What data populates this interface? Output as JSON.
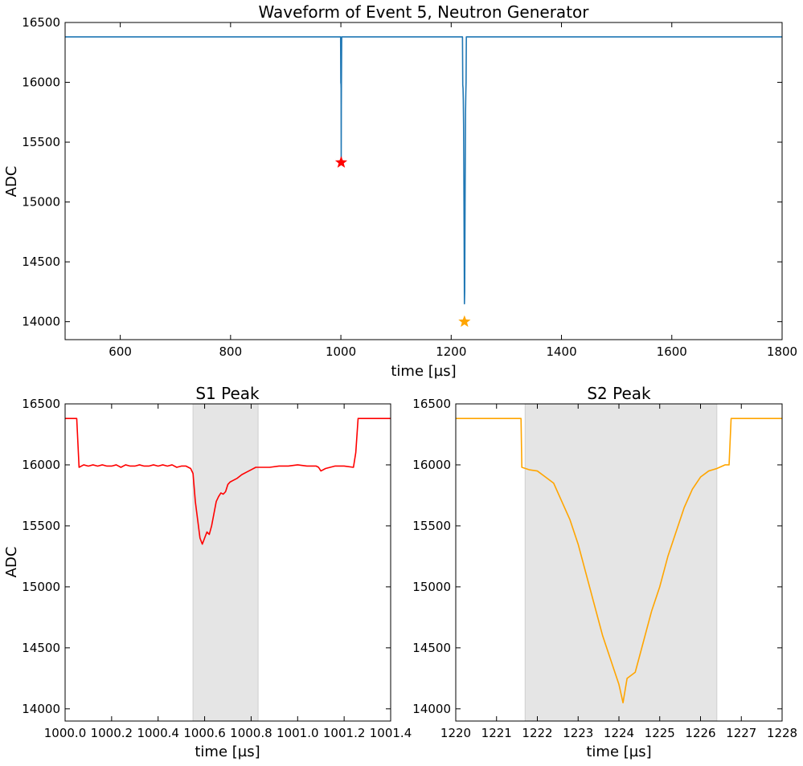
{
  "chart_data": [
    {
      "id": "main",
      "type": "line",
      "title": "Waveform of Event 5, Neutron Generator",
      "xlabel": "time [µs]",
      "ylabel": "ADC",
      "xlim": [
        500,
        1800
      ],
      "ylim": [
        13850,
        16500
      ],
      "xticks": [
        600,
        800,
        1000,
        1200,
        1400,
        1600,
        1800
      ],
      "yticks": [
        14000,
        14500,
        15000,
        15500,
        16000,
        16500
      ],
      "grid": false,
      "color": "#1f77b4",
      "series": [
        {
          "x": [
            500,
            999.5,
            999.9,
            1000.0,
            1000.1,
            1000.2,
            1000.4,
            1000.6,
            1000.8,
            1001.0,
            1001.5,
            1220.5,
            1221.0,
            1221.5,
            1222.0,
            1222.5,
            1223.0,
            1223.5,
            1224.0,
            1224.5,
            1225.0,
            1225.5,
            1226.0,
            1226.5,
            1227.0,
            1227.5,
            1800
          ],
          "y": [
            16380,
            16380,
            16000,
            15990,
            16000,
            15990,
            15950,
            15360,
            15800,
            15980,
            16380,
            16380,
            15980,
            15950,
            15850,
            15650,
            15200,
            14700,
            14150,
            14250,
            14800,
            15300,
            15750,
            15900,
            16000,
            16380,
            16380
          ]
        }
      ],
      "markers": [
        {
          "x": 1000.6,
          "y": 15330,
          "color": "#ff0000",
          "shape": "star"
        },
        {
          "x": 1224.1,
          "y": 14000,
          "color": "#ffa500",
          "shape": "star"
        }
      ]
    },
    {
      "id": "s1",
      "type": "line",
      "title": "S1 Peak",
      "xlabel": "time [µs]",
      "ylabel": "ADC",
      "xlim": [
        1000.0,
        1001.4
      ],
      "ylim": [
        13900,
        16500
      ],
      "xticks": [
        1000.0,
        1000.2,
        1000.4,
        1000.6,
        1000.8,
        1001.0,
        1001.2,
        1001.4
      ],
      "yticks": [
        14000,
        14500,
        15000,
        15500,
        16000,
        16500
      ],
      "xtick_labels": [
        "1000.0",
        "1000.2",
        "1000.4",
        "1000.6",
        "1000.8",
        "1001.0",
        "1001.2",
        "1001.4"
      ],
      "shaded_region": [
        1000.55,
        1000.83
      ],
      "grid": false,
      "color": "#ff0000",
      "series": [
        {
          "x": [
            1000.0,
            1000.05,
            1000.06,
            1000.08,
            1000.1,
            1000.12,
            1000.14,
            1000.16,
            1000.18,
            1000.2,
            1000.22,
            1000.24,
            1000.26,
            1000.28,
            1000.3,
            1000.32,
            1000.34,
            1000.36,
            1000.38,
            1000.4,
            1000.42,
            1000.44,
            1000.46,
            1000.48,
            1000.5,
            1000.52,
            1000.54,
            1000.55,
            1000.56,
            1000.57,
            1000.58,
            1000.59,
            1000.6,
            1000.61,
            1000.62,
            1000.63,
            1000.64,
            1000.65,
            1000.66,
            1000.67,
            1000.68,
            1000.69,
            1000.7,
            1000.71,
            1000.72,
            1000.74,
            1000.76,
            1000.78,
            1000.8,
            1000.82,
            1000.84,
            1000.88,
            1000.92,
            1000.96,
            1001.0,
            1001.04,
            1001.08,
            1001.09,
            1001.1,
            1001.12,
            1001.16,
            1001.2,
            1001.24,
            1001.25,
            1001.26,
            1001.3,
            1001.4
          ],
          "y": [
            16380,
            16380,
            15980,
            16000,
            15990,
            16000,
            15990,
            16000,
            15990,
            15990,
            16000,
            15980,
            16000,
            15990,
            15990,
            16000,
            15990,
            15990,
            16000,
            15990,
            16000,
            15990,
            16000,
            15980,
            15990,
            15990,
            15970,
            15930,
            15700,
            15550,
            15400,
            15350,
            15400,
            15450,
            15430,
            15500,
            15600,
            15700,
            15740,
            15770,
            15760,
            15780,
            15840,
            15860,
            15870,
            15890,
            15920,
            15940,
            15960,
            15980,
            15980,
            15980,
            15990,
            15990,
            16000,
            15990,
            15990,
            15980,
            15950,
            15970,
            15990,
            15990,
            15980,
            16100,
            16380,
            16380,
            16380
          ]
        }
      ]
    },
    {
      "id": "s2",
      "type": "line",
      "title": "S2 Peak",
      "xlabel": "time [µs]",
      "ylabel": "",
      "xlim": [
        1220,
        1228
      ],
      "ylim": [
        13900,
        16500
      ],
      "xticks": [
        1220,
        1221,
        1222,
        1223,
        1224,
        1225,
        1226,
        1227,
        1228
      ],
      "yticks": [
        14000,
        14500,
        15000,
        15500,
        16000,
        16500
      ],
      "shaded_region": [
        1221.7,
        1226.4
      ],
      "grid": false,
      "color": "#ffa500",
      "series": [
        {
          "x": [
            1220.0,
            1221.6,
            1221.62,
            1221.8,
            1222.0,
            1222.2,
            1222.4,
            1222.6,
            1222.8,
            1223.0,
            1223.2,
            1223.4,
            1223.6,
            1223.8,
            1224.0,
            1224.1,
            1224.2,
            1224.4,
            1224.6,
            1224.8,
            1225.0,
            1225.2,
            1225.4,
            1225.6,
            1225.8,
            1226.0,
            1226.2,
            1226.4,
            1226.6,
            1226.7,
            1226.75,
            1228.0
          ],
          "y": [
            16380,
            16380,
            15980,
            15960,
            15950,
            15900,
            15850,
            15700,
            15550,
            15350,
            15100,
            14850,
            14600,
            14400,
            14200,
            14050,
            14250,
            14300,
            14550,
            14800,
            15000,
            15250,
            15450,
            15650,
            15800,
            15900,
            15950,
            15970,
            16000,
            16000,
            16380,
            16380
          ]
        }
      ]
    }
  ]
}
